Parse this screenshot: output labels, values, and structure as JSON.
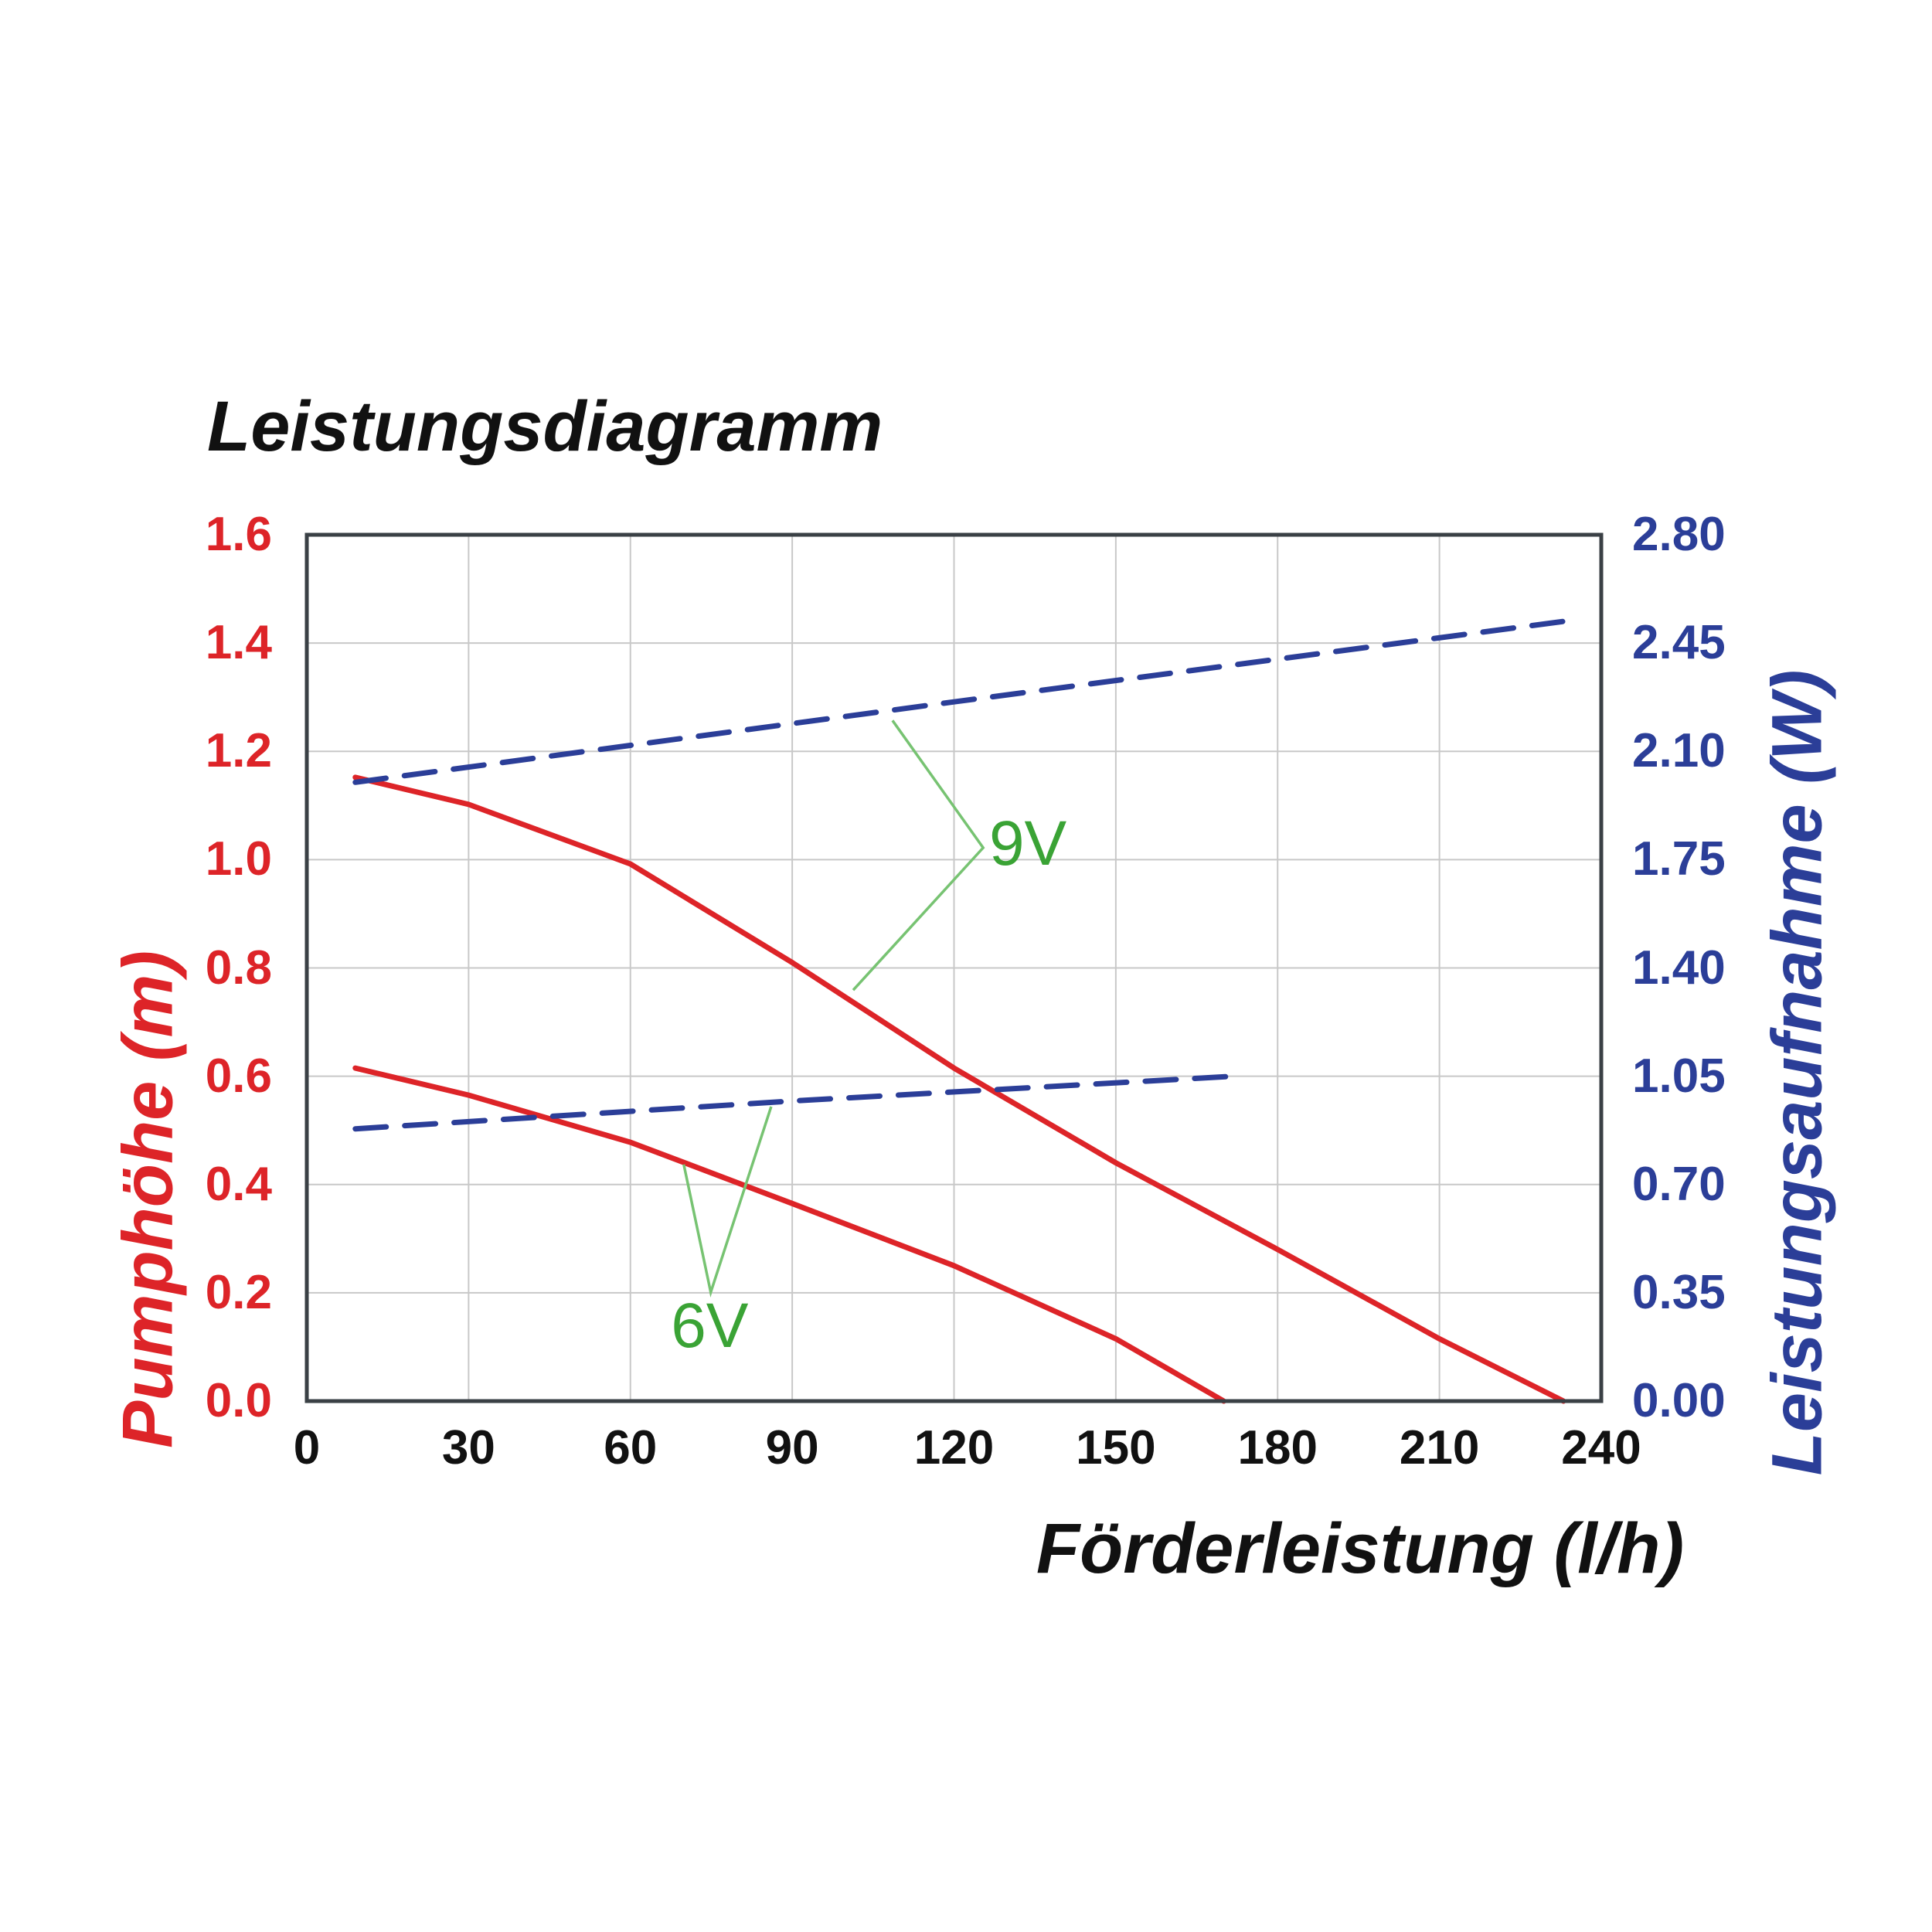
{
  "title": "Leistungsdiagramm",
  "colors": {
    "red": "#dd2428",
    "blue": "#2b3e98",
    "green": "#3aa335",
    "green_pointer": "#77c372",
    "grid": "#c8c8c8",
    "border": "#3a4045",
    "text": "#111111",
    "background": "#ffffff"
  },
  "x_axis": {
    "label": "Förderleistung (l/h)",
    "min": 0,
    "max": 240,
    "tick_step": 30,
    "ticks": [
      "0",
      "30",
      "60",
      "90",
      "120",
      "150",
      "180",
      "210",
      "240"
    ]
  },
  "y_axis_left": {
    "label": "Pumphöhe (m)",
    "min": 0,
    "max": 1.6,
    "tick_step": 0.2,
    "ticks_bottom_to_top": [
      "0.0",
      "0.2",
      "0.4",
      "0.6",
      "0.8",
      "1.0",
      "1.2",
      "1.4",
      "1.6"
    ]
  },
  "y_axis_right": {
    "label": "Leistungsaufnahme (W)",
    "min": 0,
    "max": 2.8,
    "tick_step": 0.35,
    "ticks_bottom_to_top": [
      "0.00",
      "0.35",
      "0.70",
      "1.05",
      "1.40",
      "1.75",
      "2.10",
      "2.45",
      "2.80"
    ]
  },
  "chart_data": {
    "type": "line",
    "title": "Leistungsdiagramm",
    "xlabel": "Förderleistung (l/h)",
    "ylabel_left": "Pumphöhe (m)",
    "ylabel_right": "Leistungsaufnahme (W)",
    "xlim": [
      0,
      240
    ],
    "ylim_left": [
      0,
      1.6
    ],
    "ylim_right": [
      0,
      2.8
    ],
    "grid": true,
    "legend": "inline-annotations",
    "series": [
      {
        "name": "Pumphöhe 9V",
        "voltage": "9V",
        "axis": "left",
        "style": "solid",
        "color": "#dd2428",
        "points": [
          [
            9,
            1.152
          ],
          [
            30,
            1.102
          ],
          [
            60,
            0.992
          ],
          [
            90,
            0.81
          ],
          [
            120,
            0.615
          ],
          [
            150,
            0.44
          ],
          [
            180,
            0.28
          ],
          [
            210,
            0.115
          ],
          [
            233,
            0.0
          ]
        ]
      },
      {
        "name": "Pumphöhe 6V",
        "voltage": "6V",
        "axis": "left",
        "style": "solid",
        "color": "#dd2428",
        "points": [
          [
            9,
            0.615
          ],
          [
            30,
            0.565
          ],
          [
            60,
            0.478
          ],
          [
            90,
            0.365
          ],
          [
            120,
            0.25
          ],
          [
            150,
            0.115
          ],
          [
            170,
            0.0
          ]
        ]
      },
      {
        "name": "Leistungsaufnahme 9V",
        "voltage": "9V",
        "axis": "right",
        "style": "dashed",
        "color": "#2b3e98",
        "points": [
          [
            9,
            2.0
          ],
          [
            120,
            2.26
          ],
          [
            233,
            2.52
          ]
        ]
      },
      {
        "name": "Leistungsaufnahme 6V",
        "voltage": "6V",
        "axis": "right",
        "style": "dashed",
        "color": "#2b3e98",
        "points": [
          [
            9,
            0.88
          ],
          [
            90,
            0.97
          ],
          [
            172,
            1.05
          ]
        ]
      }
    ],
    "annotations": [
      {
        "label": "9V",
        "text_x": 133.7,
        "text_y": 1.029,
        "pointer": [
          [
            108.6,
            1.257
          ],
          [
            125.4,
            1.022
          ],
          [
            101.3,
            0.759
          ]
        ]
      },
      {
        "label": "6V",
        "text_x": 74.7,
        "text_y": 0.138,
        "pointer": [
          [
            69.9,
            0.437
          ],
          [
            74.9,
            0.201
          ],
          [
            86.1,
            0.544
          ]
        ]
      }
    ]
  }
}
